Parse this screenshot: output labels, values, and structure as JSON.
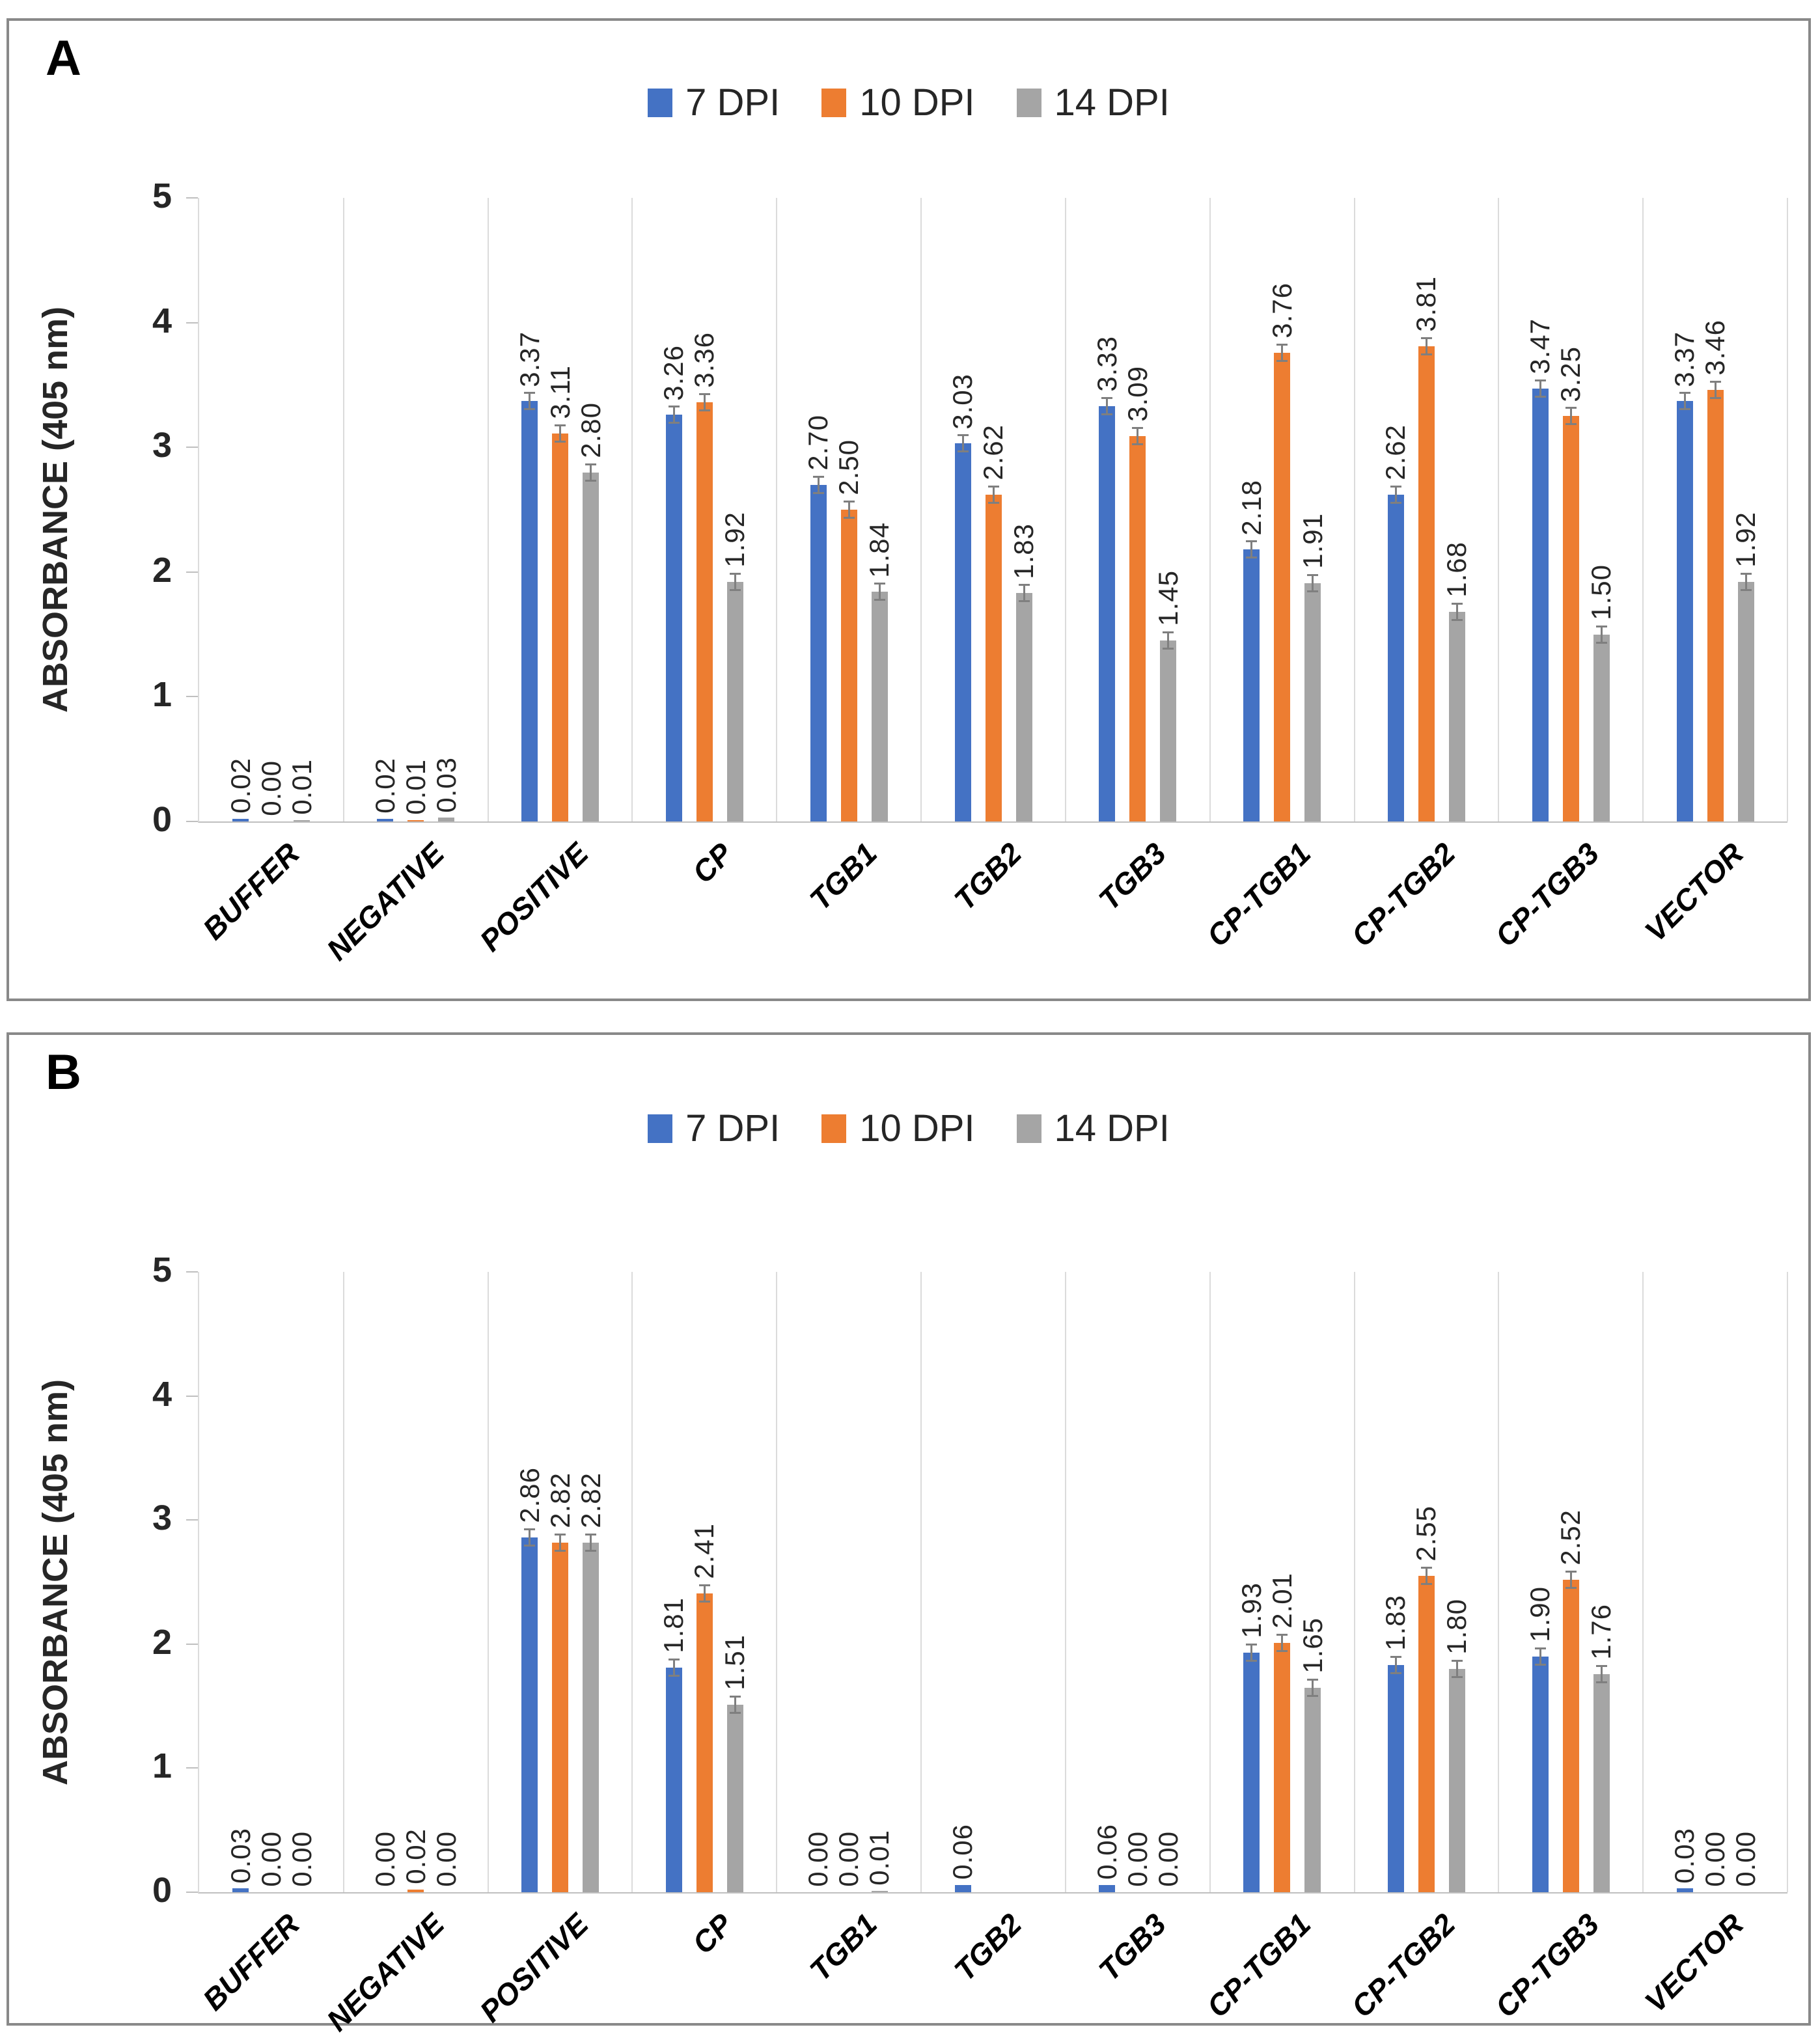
{
  "legend": [
    "7 DPI",
    "10 DPI",
    "14 DPI"
  ],
  "colors": {
    "series": [
      "#4472C4",
      "#ED7D31",
      "#A5A5A5"
    ],
    "gridline": "#DBDBDB",
    "axis": "#BFBFBF",
    "error_bar": "#7F7F7F",
    "panel_border": "#898989",
    "text": "#262626"
  },
  "chart_data": [
    {
      "type": "bar",
      "panel": "A",
      "ylabel": "ABSORBANCE (405 nm)",
      "ylim": [
        0,
        5
      ],
      "yticks": [
        0,
        1,
        2,
        3,
        4,
        5
      ],
      "grid": "vertical-only",
      "legend_position": "top-center",
      "error_bars": true,
      "categories": [
        "BUFFER",
        "NEGATIVE",
        "POSITIVE",
        "CP",
        "TGB1",
        "TGB2",
        "TGB3",
        "CP-TGB1",
        "CP-TGB2",
        "CP-TGB3",
        "VECTOR"
      ],
      "series": [
        {
          "name": "7 DPI",
          "values": [
            0.02,
            0.02,
            3.37,
            3.26,
            2.7,
            3.03,
            3.33,
            2.18,
            2.62,
            3.47,
            3.37
          ],
          "labels": [
            "0.02",
            "0.02",
            "3.37",
            "3.26",
            "2.70",
            "3.03",
            "3.33",
            "2.18",
            "2.62",
            "3.47",
            "3.37"
          ]
        },
        {
          "name": "10 DPI",
          "values": [
            0.0,
            0.01,
            3.11,
            3.36,
            2.5,
            2.62,
            3.09,
            3.76,
            3.81,
            3.25,
            3.46
          ],
          "labels": [
            "0.00",
            "0.01",
            "3.11",
            "3.36",
            "2.50",
            "2.62",
            "3.09",
            "3.76",
            "3.81",
            "3.25",
            "3.46"
          ]
        },
        {
          "name": "14 DPI",
          "values": [
            0.01,
            0.03,
            2.8,
            1.92,
            1.84,
            1.83,
            1.45,
            1.91,
            1.68,
            1.5,
            1.92
          ],
          "labels": [
            "0.01",
            "0.03",
            "2.80",
            "1.92",
            "1.84",
            "1.83",
            "1.45",
            "1.91",
            "1.68",
            "1.50",
            "1.92"
          ]
        }
      ]
    },
    {
      "type": "bar",
      "panel": "B",
      "ylabel": "ABSORBANCE (405 nm)",
      "ylim": [
        0,
        5
      ],
      "yticks": [
        0,
        1,
        2,
        3,
        4,
        5
      ],
      "grid": "vertical-only",
      "legend_position": "top-center",
      "error_bars": true,
      "categories": [
        "BUFFER",
        "NEGATIVE",
        "POSITIVE",
        "CP",
        "TGB1",
        "TGB2",
        "TGB3",
        "CP-TGB1",
        "CP-TGB2",
        "CP-TGB3",
        "VECTOR"
      ],
      "series": [
        {
          "name": "7 DPI",
          "values": [
            0.03,
            0.0,
            2.86,
            1.81,
            0.0,
            0.06,
            0.06,
            1.93,
            1.83,
            1.9,
            0.03
          ],
          "labels": [
            "0.03",
            "0.00",
            "2.86",
            "1.81",
            "0.00",
            "0.06",
            "0.06",
            "1.93",
            "1.83",
            "1.90",
            "0.03"
          ]
        },
        {
          "name": "10 DPI",
          "values": [
            0.0,
            0.02,
            2.82,
            2.41,
            0.0,
            0.0,
            0.0,
            2.01,
            2.55,
            2.52,
            0.0
          ],
          "labels": [
            "0.00",
            "0.02",
            "2.82",
            "2.41",
            "0.00",
            "",
            "0.00",
            "2.01",
            "2.55",
            "2.52",
            "0.00"
          ]
        },
        {
          "name": "14 DPI",
          "values": [
            0.0,
            0.0,
            2.82,
            1.51,
            0.01,
            0.0,
            0.0,
            1.65,
            1.8,
            1.76,
            0.0
          ],
          "labels": [
            "0.00",
            "0.00",
            "2.82",
            "1.51",
            "0.01",
            "",
            "0.00",
            "1.65",
            "1.80",
            "1.76",
            "0.00"
          ]
        }
      ]
    }
  ]
}
